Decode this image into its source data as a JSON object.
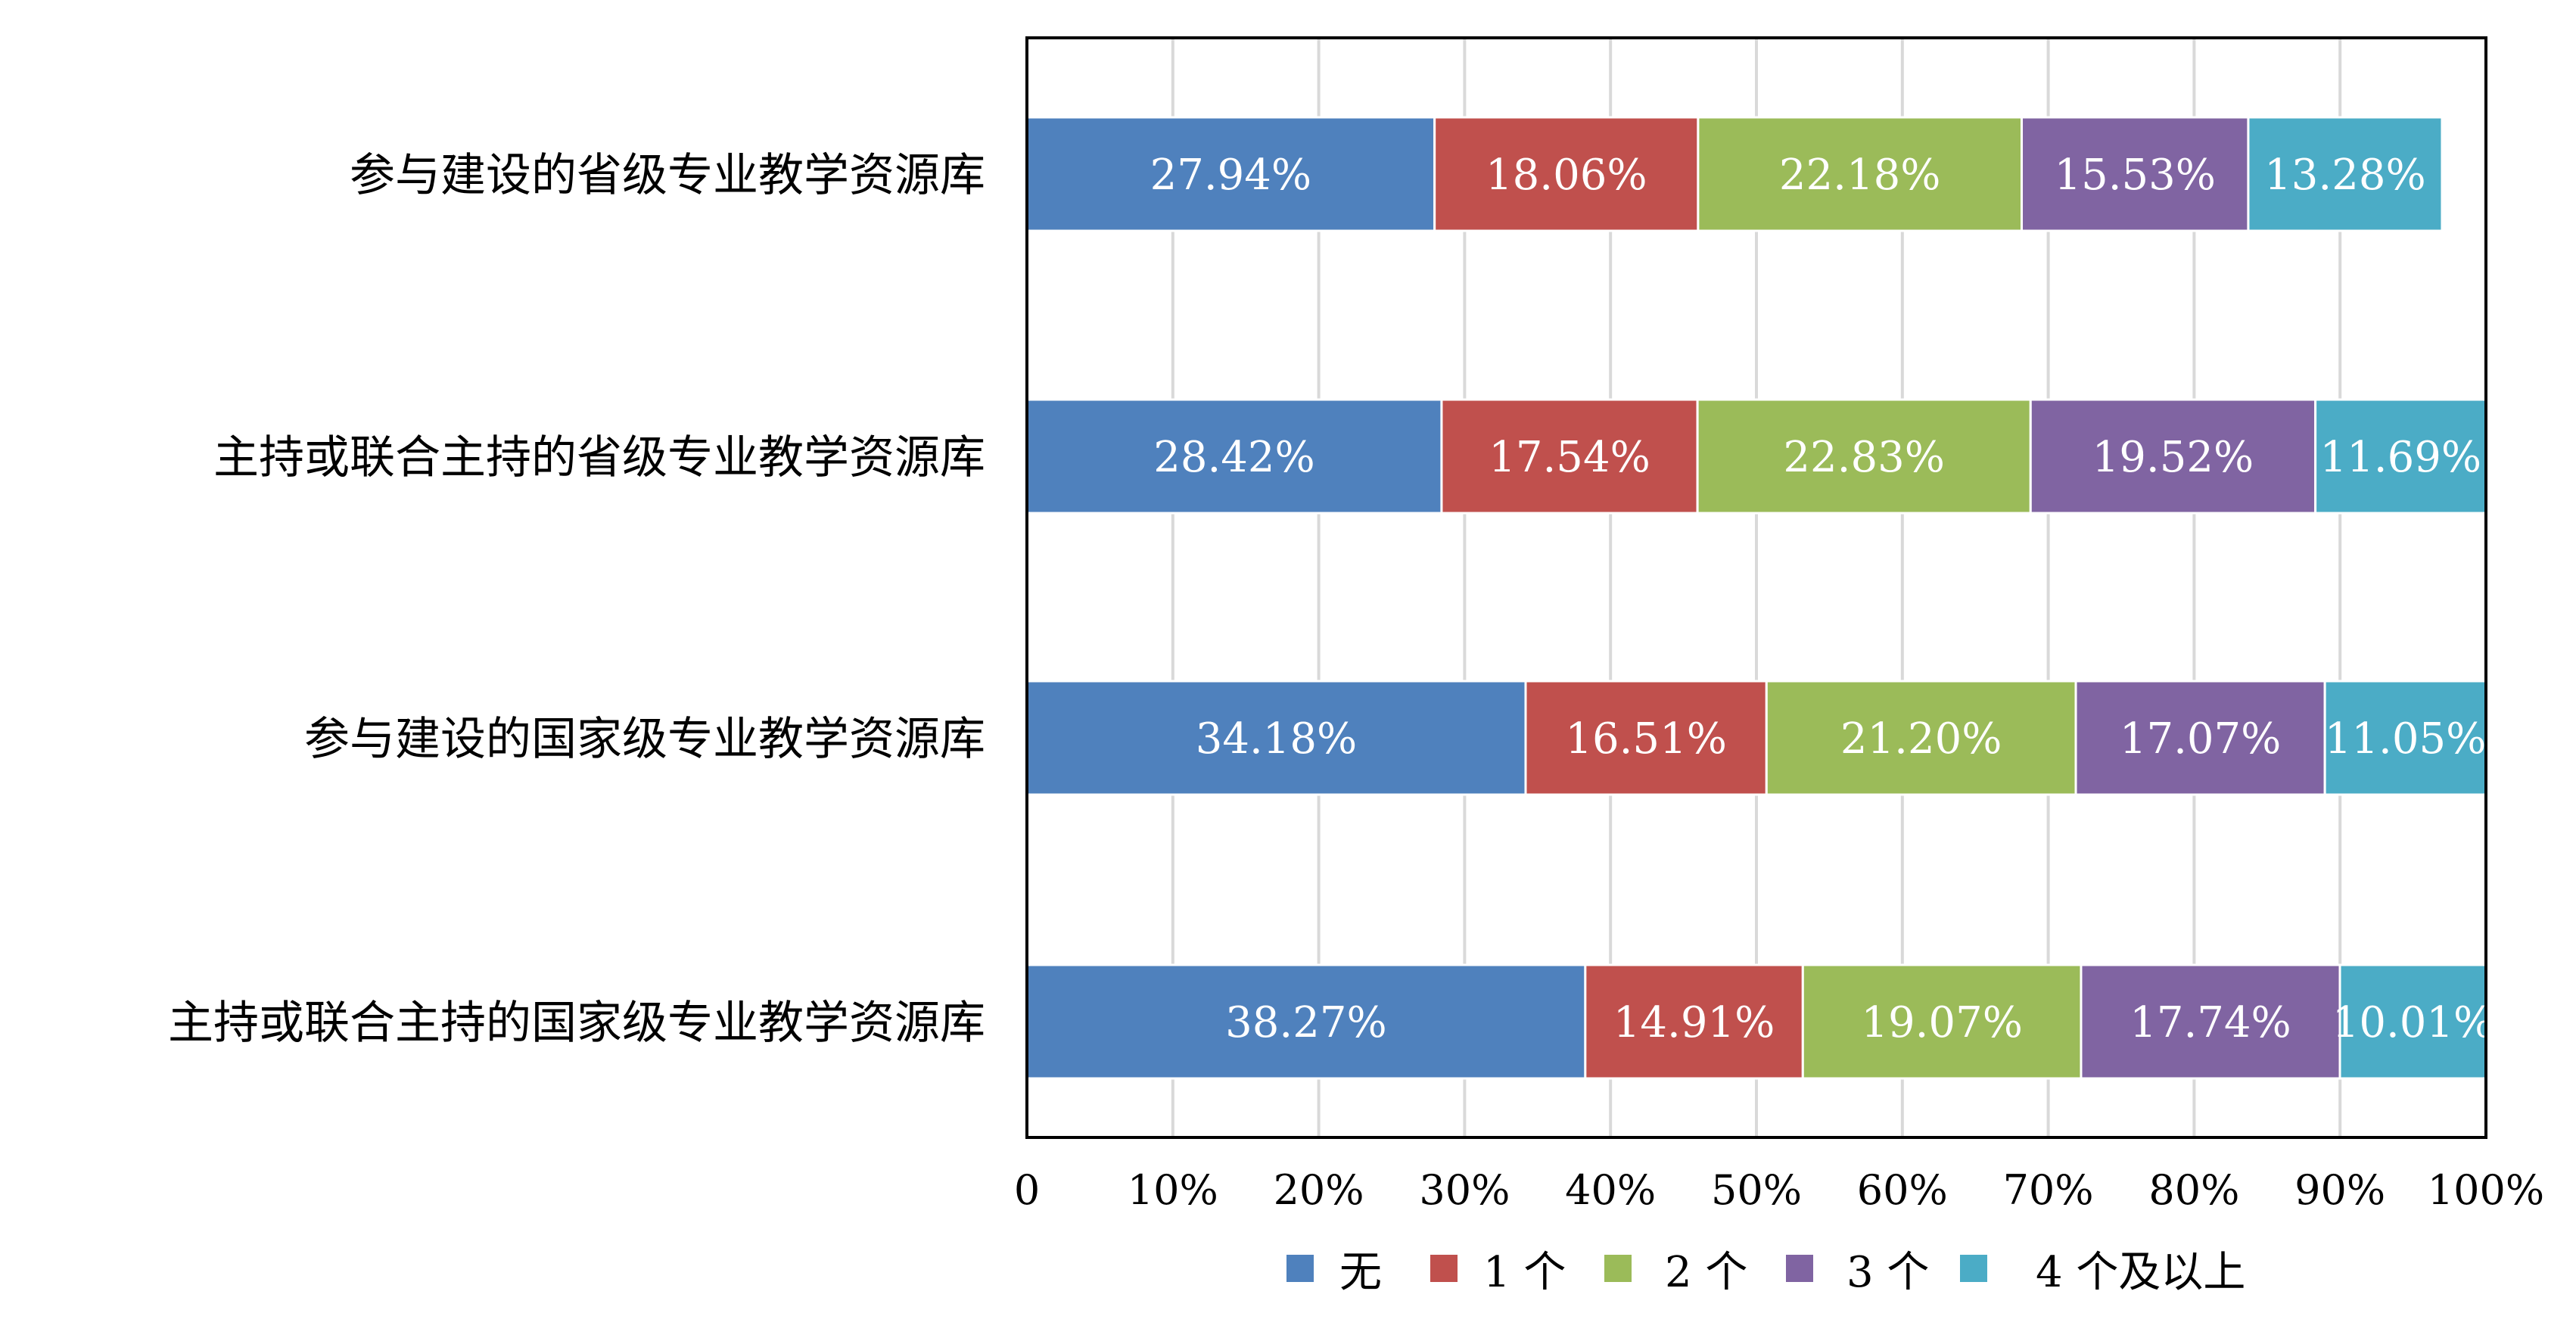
{
  "chart_data": {
    "type": "bar",
    "orientation": "horizontal",
    "stacked": "percent",
    "categories": [
      "参与建设的省级专业教学资源库",
      "主持或联合主持的省级专业教学资源库",
      "参与建设的国家级专业教学资源库",
      "主持或联合主持的国家级专业教学资源库"
    ],
    "series": [
      {
        "name": "无",
        "color": "#4f81bd",
        "values": [
          27.94,
          28.42,
          34.18,
          38.27
        ]
      },
      {
        "name": "1 个",
        "color": "#c0504d",
        "values": [
          18.06,
          17.54,
          16.51,
          14.91
        ]
      },
      {
        "name": "2 个",
        "color": "#9bbb59",
        "values": [
          22.18,
          22.83,
          21.2,
          19.07
        ]
      },
      {
        "name": "3 个",
        "color": "#8064a2",
        "values": [
          15.53,
          19.52,
          17.07,
          17.74
        ]
      },
      {
        "name": "4 个及以上",
        "color": "#4bacc6",
        "values": [
          13.28,
          11.69,
          11.05,
          10.01
        ]
      }
    ],
    "data_labels": [
      [
        "27.94%",
        "28.42%",
        "34.18%",
        "38.27%"
      ],
      [
        "18.06%",
        "17.54%",
        "16.51%",
        "14.91%"
      ],
      [
        "22.18%",
        "22.83%",
        "21.20%",
        "19.07%"
      ],
      [
        "15.53%",
        "19.52%",
        "17.07%",
        "17.74%"
      ],
      [
        "13.28%",
        "11.69%",
        "11.05%",
        "10.01%"
      ]
    ],
    "x_ticks": [
      "0",
      "10%",
      "20%",
      "30%",
      "40%",
      "50%",
      "60%",
      "70%",
      "80%",
      "90%",
      "100%"
    ],
    "xlim": [
      0,
      100
    ],
    "title": "",
    "xlabel": "",
    "ylabel": "",
    "grid": "vertical",
    "legend_position": "bottom"
  }
}
